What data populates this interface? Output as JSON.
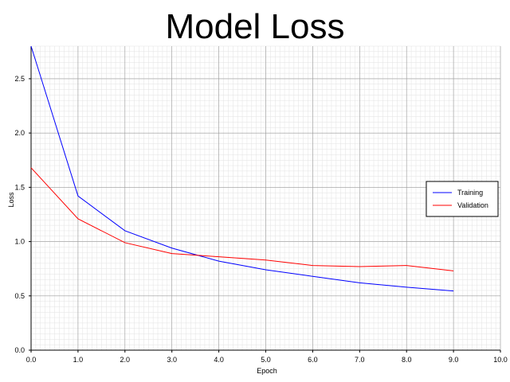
{
  "chart_data": {
    "type": "line",
    "title": "Model Loss",
    "xlabel": "Epoch",
    "ylabel": "Loss",
    "xlim": [
      0.0,
      10.0
    ],
    "ylim": [
      0.0,
      2.8
    ],
    "x_ticks": [
      "0.0",
      "1.0",
      "2.0",
      "3.0",
      "4.0",
      "5.0",
      "6.0",
      "7.0",
      "8.0",
      "9.0",
      "10.0"
    ],
    "y_ticks": [
      "0.0",
      "0.5",
      "1.0",
      "1.5",
      "2.0",
      "2.5"
    ],
    "grid": true,
    "legend_position": "right",
    "x": [
      0,
      1,
      2,
      3,
      4,
      5,
      6,
      7,
      8,
      9
    ],
    "series": [
      {
        "name": "Training",
        "color": "#0000ff",
        "values": [
          2.8,
          1.42,
          1.1,
          0.94,
          0.82,
          0.74,
          0.68,
          0.62,
          0.58,
          0.545
        ]
      },
      {
        "name": "Validation",
        "color": "#ff0000",
        "values": [
          1.68,
          1.21,
          0.99,
          0.89,
          0.86,
          0.83,
          0.78,
          0.77,
          0.78,
          0.73
        ]
      }
    ]
  }
}
